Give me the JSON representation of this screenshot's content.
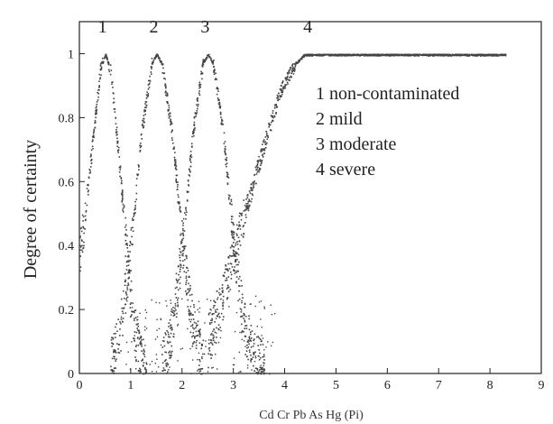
{
  "chart_data": {
    "type": "scatter",
    "title": "",
    "xlabel": "Cd Cr Pb As Hg (Pi)",
    "ylabel": "Degree of certainty",
    "xlim": [
      0,
      9
    ],
    "ylim": [
      0,
      1.1
    ],
    "x_ticks": [
      "0",
      "1",
      "2",
      "3",
      "4",
      "5",
      "6",
      "7",
      "8",
      "9"
    ],
    "y_ticks": [
      "0",
      "0.2",
      "0.4",
      "0.6",
      "0.8",
      "1"
    ],
    "grid": false,
    "legend_position": "right",
    "legend": [
      {
        "id": "1",
        "label": "non-contaminated"
      },
      {
        "id": "2",
        "label": "mild"
      },
      {
        "id": "3",
        "label": "moderate"
      },
      {
        "id": "4",
        "label": "severe"
      }
    ],
    "series": [
      {
        "name": "1",
        "color": "#444444",
        "shape": "bell",
        "peak_x": 0.5,
        "peak_y": 1,
        "width": 0.5,
        "points": [
          [
            0,
            0.37
          ],
          [
            0.1,
            0.5
          ],
          [
            0.2,
            0.65
          ],
          [
            0.3,
            0.8
          ],
          [
            0.4,
            0.95
          ],
          [
            0.5,
            1.0
          ],
          [
            0.6,
            0.95
          ],
          [
            0.7,
            0.78
          ],
          [
            0.8,
            0.6
          ],
          [
            0.9,
            0.4
          ],
          [
            1.0,
            0.22
          ],
          [
            1.1,
            0.1
          ],
          [
            1.2,
            0.04
          ],
          [
            1.3,
            0.01
          ]
        ]
      },
      {
        "name": "2",
        "color": "#444444",
        "shape": "bell",
        "peak_x": 1.5,
        "peak_y": 1,
        "width": 0.5,
        "points": [
          [
            0.6,
            0.02
          ],
          [
            0.8,
            0.15
          ],
          [
            1.0,
            0.4
          ],
          [
            1.2,
            0.75
          ],
          [
            1.4,
            0.97
          ],
          [
            1.5,
            1.0
          ],
          [
            1.6,
            0.97
          ],
          [
            1.8,
            0.75
          ],
          [
            2.0,
            0.4
          ],
          [
            2.2,
            0.15
          ],
          [
            2.4,
            0.02
          ]
        ]
      },
      {
        "name": "3",
        "color": "#444444",
        "shape": "bell",
        "peak_x": 2.5,
        "peak_y": 1,
        "width": 0.5,
        "points": [
          [
            1.6,
            0.02
          ],
          [
            1.8,
            0.15
          ],
          [
            2.0,
            0.4
          ],
          [
            2.2,
            0.75
          ],
          [
            2.4,
            0.97
          ],
          [
            2.5,
            1.0
          ],
          [
            2.6,
            0.97
          ],
          [
            2.8,
            0.75
          ],
          [
            3.0,
            0.4
          ],
          [
            3.2,
            0.15
          ],
          [
            3.4,
            0.05
          ],
          [
            3.6,
            0.01
          ]
        ]
      },
      {
        "name": "4",
        "color": "#444444",
        "shape": "sigmoid",
        "plateau_start_x": 4.4,
        "end_x": 8.3,
        "points": [
          [
            2.5,
            0.1
          ],
          [
            2.8,
            0.25
          ],
          [
            3.0,
            0.38
          ],
          [
            3.3,
            0.55
          ],
          [
            3.6,
            0.72
          ],
          [
            3.9,
            0.88
          ],
          [
            4.2,
            0.97
          ],
          [
            4.4,
            1.0
          ],
          [
            5.0,
            1.0
          ],
          [
            6.0,
            1.0
          ],
          [
            7.0,
            1.0
          ],
          [
            8.3,
            1.0
          ]
        ]
      }
    ],
    "curve_labels": [
      {
        "text": "1",
        "x": 0.45,
        "y": 1.06
      },
      {
        "text": "2",
        "x": 1.45,
        "y": 1.06
      },
      {
        "text": "3",
        "x": 2.45,
        "y": 1.06
      },
      {
        "text": "4",
        "x": 4.45,
        "y": 1.06
      }
    ]
  }
}
